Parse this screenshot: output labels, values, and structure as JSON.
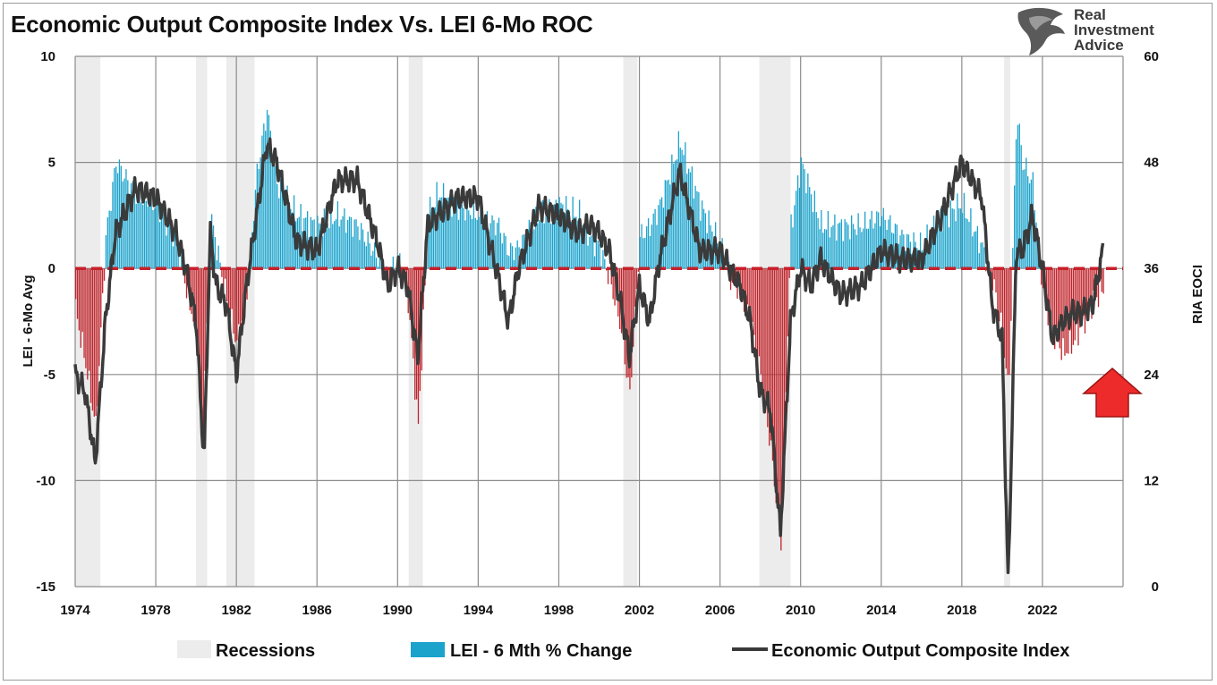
{
  "title": "Economic Output Composite Index Vs. LEI 6-Mo ROC",
  "brand": {
    "line1": "Real",
    "line2": "Investment",
    "line3": "Advice"
  },
  "colors": {
    "lei_positive": "#1ba3cc",
    "lei_negative": "#c0242b",
    "eoci_line": "#3a3a3a",
    "zero_line": "#c8202a",
    "recession": "#ececec",
    "grid": "#8c8c8c",
    "arrow": "#ee2b2b"
  },
  "chart_data": {
    "type": "bar",
    "xlim": [
      1974,
      2026
    ],
    "x_ticks": [
      "1974",
      "1978",
      "1982",
      "1986",
      "1990",
      "1994",
      "1998",
      "2002",
      "2006",
      "2010",
      "2014",
      "2018",
      "2022"
    ],
    "y_left": {
      "label": "LEI - 6-Mo Avg",
      "ylim": [
        -15,
        10
      ],
      "ticks": [
        "10",
        "5",
        "0",
        "-5",
        "-10",
        "-15"
      ]
    },
    "y_right": {
      "label": "RIA EOCI",
      "ylim": [
        0,
        60
      ],
      "ticks": [
        "60",
        "48",
        "36",
        "24",
        "12",
        "0"
      ]
    },
    "grid": true,
    "legend_position": "bottom",
    "legend": [
      "Recessions",
      "LEI - 6 Mth % Change",
      "Economic Output Composite Index"
    ],
    "recessions": [
      [
        1974.0,
        1975.25
      ],
      [
        1980.0,
        1980.55
      ],
      [
        1981.5,
        1982.9
      ],
      [
        1990.55,
        1991.25
      ],
      [
        2001.2,
        2001.9
      ],
      [
        2007.95,
        2009.5
      ],
      [
        2020.1,
        2020.4
      ]
    ],
    "lei_series": {
      "name": "LEI - 6 Mth % Change",
      "x": [
        1974.0,
        1974.5,
        1975.0,
        1975.5,
        1976.0,
        1977.0,
        1978.0,
        1979.0,
        1979.5,
        1980.0,
        1980.3,
        1980.7,
        1981.0,
        1981.5,
        1982.0,
        1982.5,
        1983.0,
        1983.5,
        1984.0,
        1985.0,
        1986.0,
        1987.0,
        1988.0,
        1989.0,
        1989.5,
        1990.0,
        1990.5,
        1991.0,
        1991.5,
        1992.0,
        1993.0,
        1994.0,
        1995.0,
        1995.5,
        1996.0,
        1997.0,
        1998.0,
        1999.0,
        1999.5,
        2000.0,
        2000.5,
        2001.0,
        2001.5,
        2002.0,
        2002.5,
        2003.0,
        2004.0,
        2005.0,
        2006.0,
        2006.5,
        2007.0,
        2007.5,
        2008.0,
        2008.5,
        2009.0,
        2009.5,
        2010.0,
        2010.5,
        2011.0,
        2012.0,
        2013.0,
        2014.0,
        2015.0,
        2016.0,
        2017.0,
        2018.0,
        2019.0,
        2019.5,
        2020.0,
        2020.3,
        2020.7,
        2021.0,
        2021.5,
        2022.0,
        2022.5,
        2023.0,
        2023.5,
        2024.0,
        2024.5,
        2025.0
      ],
      "values": [
        -2.0,
        -4.5,
        -7.5,
        1.5,
        5.0,
        3.5,
        3.0,
        1.5,
        -1.0,
        -3.0,
        -8.0,
        2.5,
        1.0,
        -1.5,
        -3.5,
        -1.0,
        4.5,
        7.5,
        4.0,
        2.5,
        2.0,
        2.5,
        2.0,
        0.5,
        -0.5,
        0.5,
        -1.5,
        -7.5,
        2.5,
        3.5,
        3.0,
        2.5,
        2.0,
        0.8,
        1.0,
        2.5,
        3.0,
        2.5,
        1.5,
        1.0,
        -0.5,
        -2.5,
        -6.0,
        1.5,
        2.0,
        3.0,
        6.0,
        3.0,
        1.0,
        -0.5,
        -1.0,
        -2.5,
        -5.0,
        -8.5,
        -13.0,
        2.0,
        5.0,
        3.5,
        2.0,
        2.0,
        2.0,
        2.5,
        1.5,
        1.0,
        2.5,
        3.0,
        1.0,
        -0.5,
        -3.0,
        -6.0,
        7.5,
        5.0,
        4.0,
        -1.0,
        -3.0,
        -4.0,
        -3.5,
        -2.5,
        -1.5,
        -1.0
      ]
    },
    "eoci_series": {
      "name": "Economic Output Composite Index",
      "x": [
        1974.0,
        1974.5,
        1975.0,
        1975.5,
        1976.0,
        1977.0,
        1978.0,
        1979.0,
        1979.5,
        1980.0,
        1980.4,
        1980.7,
        1981.0,
        1981.5,
        1982.0,
        1982.5,
        1983.0,
        1983.5,
        1984.0,
        1985.0,
        1986.0,
        1987.0,
        1988.0,
        1989.0,
        1989.5,
        1990.0,
        1990.5,
        1991.0,
        1991.5,
        1992.0,
        1993.0,
        1994.0,
        1995.0,
        1995.5,
        1996.0,
        1997.0,
        1998.0,
        1999.0,
        1999.5,
        2000.0,
        2000.5,
        2001.0,
        2001.5,
        2002.0,
        2002.5,
        2003.0,
        2004.0,
        2005.0,
        2006.0,
        2006.5,
        2007.0,
        2007.5,
        2008.0,
        2008.5,
        2009.0,
        2009.5,
        2010.0,
        2010.5,
        2011.0,
        2012.0,
        2013.0,
        2014.0,
        2015.0,
        2016.0,
        2017.0,
        2018.0,
        2019.0,
        2019.5,
        2020.0,
        2020.3,
        2020.7,
        2021.0,
        2021.5,
        2022.0,
        2022.5,
        2023.0,
        2023.5,
        2024.0,
        2024.5,
        2025.0
      ],
      "values": [
        24.0,
        22.0,
        14.0,
        30.0,
        40.0,
        45.0,
        44.0,
        40.0,
        36.0,
        30.0,
        14.0,
        40.0,
        34.0,
        32.0,
        24.0,
        34.0,
        42.0,
        50.0,
        48.0,
        39.0,
        38.0,
        46.0,
        46.0,
        39.0,
        34.0,
        36.0,
        34.0,
        26.0,
        41.0,
        42.0,
        44.0,
        44.0,
        35.0,
        30.0,
        36.0,
        43.0,
        42.0,
        40.0,
        41.0,
        40.0,
        38.0,
        33.0,
        26.0,
        34.0,
        30.0,
        37.0,
        47.0,
        38.0,
        38.0,
        36.0,
        34.0,
        30.0,
        22.0,
        20.0,
        6.0,
        30.0,
        36.0,
        34.0,
        37.0,
        33.0,
        34.0,
        38.0,
        37.0,
        37.0,
        42.0,
        48.0,
        44.0,
        32.0,
        28.0,
        0.0,
        38.0,
        38.0,
        42.0,
        36.0,
        28.0,
        30.0,
        31.0,
        31.0,
        32.0,
        38.0
      ]
    }
  }
}
